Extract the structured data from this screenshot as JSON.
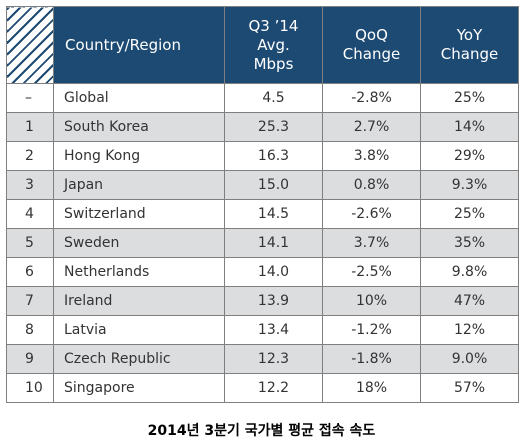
{
  "table": {
    "headers": {
      "country": "Country/Region",
      "speed": [
        "Q3 ’14",
        "Avg.",
        "Mbps"
      ],
      "qoq": [
        "QoQ",
        "Change"
      ],
      "yoy": [
        "YoY",
        "Change"
      ]
    },
    "rows": [
      {
        "rank": "–",
        "name": "Global",
        "speed": "4.5",
        "qoq": "-2.8%",
        "yoy": "25%"
      },
      {
        "rank": "1",
        "name": "South Korea",
        "speed": "25.3",
        "qoq": "2.7%",
        "yoy": "14%"
      },
      {
        "rank": "2",
        "name": "Hong Kong",
        "speed": "16.3",
        "qoq": "3.8%",
        "yoy": "29%"
      },
      {
        "rank": "3",
        "name": "Japan",
        "speed": "15.0",
        "qoq": "0.8%",
        "yoy": "9.3%"
      },
      {
        "rank": "4",
        "name": "Switzerland",
        "speed": "14.5",
        "qoq": "-2.6%",
        "yoy": "25%"
      },
      {
        "rank": "5",
        "name": "Sweden",
        "speed": "14.1",
        "qoq": "3.7%",
        "yoy": "35%"
      },
      {
        "rank": "6",
        "name": "Netherlands",
        "speed": "14.0",
        "qoq": "-2.5%",
        "yoy": "9.8%"
      },
      {
        "rank": "7",
        "name": "Ireland",
        "speed": "13.9",
        "qoq": "10%",
        "yoy": "47%"
      },
      {
        "rank": "8",
        "name": "Latvia",
        "speed": "13.4",
        "qoq": "-1.2%",
        "yoy": "12%"
      },
      {
        "rank": "9",
        "name": "Czech Republic",
        "speed": "12.3",
        "qoq": "-1.8%",
        "yoy": "9.0%"
      },
      {
        "rank": "10",
        "name": "Singapore",
        "speed": "12.2",
        "qoq": "18%",
        "yoy": "57%"
      }
    ]
  },
  "caption": "2014년 3분기 국가별 평균 접속 속도",
  "colors": {
    "header_bg": "#1d4a73",
    "alt_row_bg": "#dcdddf",
    "border": "#7f7f7f"
  }
}
